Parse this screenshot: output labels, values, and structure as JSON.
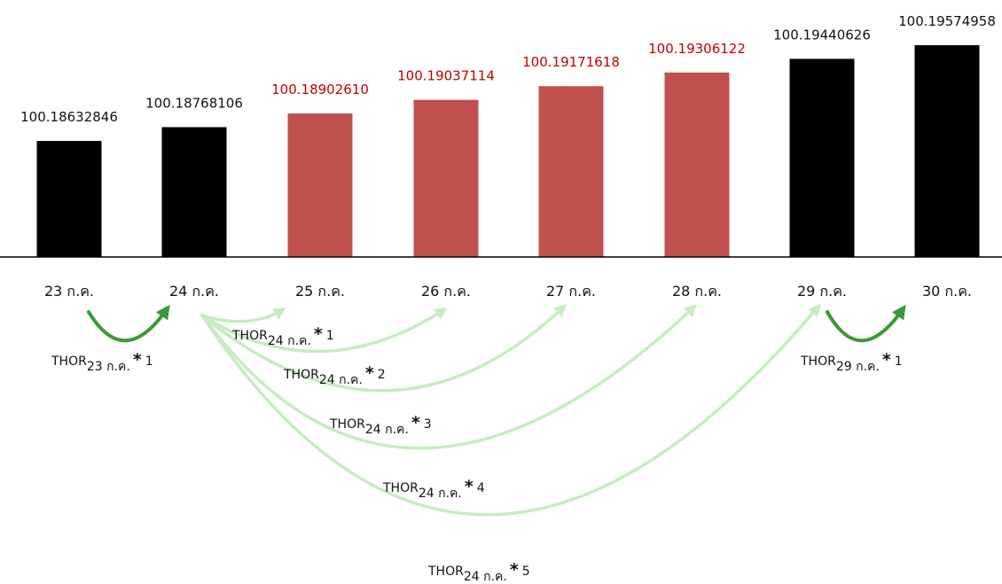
{
  "colors": {
    "black_bar": "#000000",
    "red_bar": "#c0504d",
    "red_text": "#c00000",
    "black_text": "#111111",
    "dark_arrow": "#3a9a35",
    "light_arrow": "#c6ecc0"
  },
  "chart_data": {
    "type": "bar",
    "categories": [
      "23 ก.ค.",
      "24 ก.ค.",
      "25 ก.ค.",
      "26 ก.ค.",
      "27 ก.ค.",
      "28 ก.ค.",
      "29 ก.ค.",
      "30 ก.ค."
    ],
    "values": [
      100.18632846,
      100.18768106,
      100.1890261,
      100.19037114,
      100.19171618,
      100.19306122,
      100.19440626,
      100.19574958
    ],
    "value_labels": [
      "100.18632846",
      "100.18768106",
      "100.18902610",
      "100.19037114",
      "100.19171618",
      "100.19306122",
      "100.19440626",
      "100.19574958"
    ],
    "bar_colors": [
      "black",
      "black",
      "red",
      "red",
      "red",
      "red",
      "black",
      "black"
    ],
    "ylim": [
      100.185,
      100.196
    ],
    "grid": false,
    "legend": "none",
    "title": "",
    "xlabel": "",
    "ylabel": "",
    "annotations": [
      {
        "from": 0,
        "to": 1,
        "style": "dark",
        "prefix": "THOR",
        "sub": "23 ก.ค.",
        "mult": "1"
      },
      {
        "from": 1,
        "to": 2,
        "style": "light",
        "prefix": "THOR",
        "sub": "24 ก.ค.",
        "mult": "1"
      },
      {
        "from": 1,
        "to": 3,
        "style": "light",
        "prefix": "THOR",
        "sub": "24 ก.ค.",
        "mult": "2"
      },
      {
        "from": 1,
        "to": 4,
        "style": "light",
        "prefix": "THOR",
        "sub": "24 ก.ค.",
        "mult": "3"
      },
      {
        "from": 1,
        "to": 5,
        "style": "light",
        "prefix": "THOR",
        "sub": "24 ก.ค.",
        "mult": "4"
      },
      {
        "from": 1,
        "to": 6,
        "style": "light",
        "prefix": "THOR",
        "sub": "24 ก.ค.",
        "mult": "5"
      },
      {
        "from": 6,
        "to": 7,
        "style": "dark",
        "prefix": "THOR",
        "sub": "29 ก.ค.",
        "mult": "1"
      }
    ]
  }
}
